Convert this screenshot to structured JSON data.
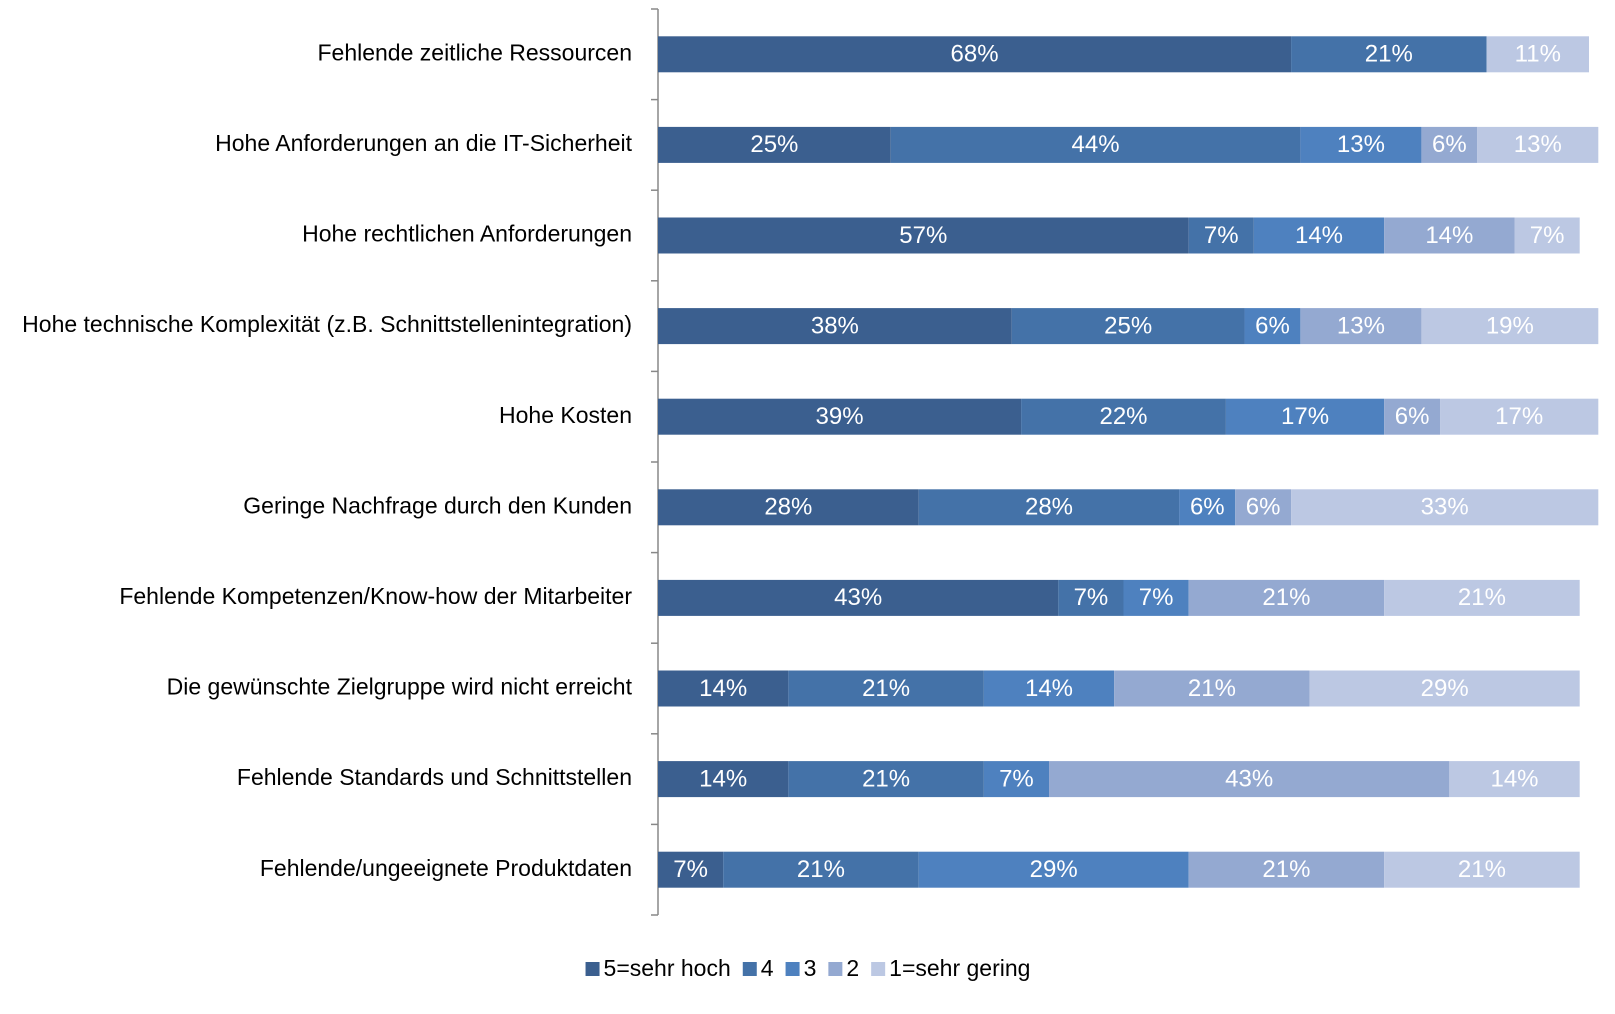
{
  "chart_data": {
    "type": "stacked-bar-horizontal",
    "categories": [
      "Fehlende zeitliche Ressourcen",
      "Hohe Anforderungen an die IT-Sicherheit",
      "Hohe rechtlichen Anforderungen",
      "Hohe technische Komplexität (z.B. Schnittstellenintegration)",
      "Hohe Kosten",
      "Geringe Nachfrage durch den Kunden",
      "Fehlende Kompetenzen/Know-how der Mitarbeiter",
      "Die gewünschte Zielgruppe wird nicht erreicht",
      "Fehlende Standards und Schnittstellen",
      "Fehlende/ungeeignete Produktdaten"
    ],
    "xlim": [
      0,
      100
    ],
    "legend": "bottom",
    "series": [
      {
        "name": "5=sehr hoch",
        "color": "#3b5f8f",
        "values": [
          68,
          25,
          57,
          38,
          39,
          28,
          43,
          14,
          14,
          7
        ],
        "value_labels": [
          "68%",
          "25%",
          "57%",
          "38%",
          "39%",
          "28%",
          "43%",
          "14%",
          "14%",
          "7%"
        ]
      },
      {
        "name": "4",
        "color": "#4472a8",
        "values": [
          21,
          44,
          7,
          25,
          22,
          28,
          7,
          21,
          21,
          21
        ],
        "value_labels": [
          "21%",
          "44%",
          "7%",
          "25%",
          "22%",
          "28%",
          "7%",
          "21%",
          "21%",
          "21%"
        ]
      },
      {
        "name": "3",
        "color": "#4e81bf",
        "values": [
          null,
          13,
          14,
          6,
          17,
          6,
          7,
          14,
          7,
          29
        ],
        "value_labels": [
          null,
          "13%",
          "14%",
          "6%",
          "17%",
          "6%",
          "7%",
          "14%",
          "7%",
          "29%"
        ]
      },
      {
        "name": "2",
        "color": "#94a9d1",
        "values": [
          null,
          6,
          14,
          13,
          6,
          6,
          21,
          21,
          43,
          21
        ],
        "value_labels": [
          null,
          "6%",
          "14%",
          "13%",
          "6%",
          "6%",
          "21%",
          "21%",
          "43%",
          "21%"
        ]
      },
      {
        "name": "1=sehr gering",
        "color": "#bcc8e3",
        "values": [
          11,
          13,
          7,
          19,
          17,
          33,
          21,
          29,
          14,
          21
        ],
        "value_labels": [
          "11%",
          "13%",
          "7%",
          "19%",
          "17%",
          "33%",
          "21%",
          "29%",
          "14%",
          "21%"
        ]
      }
    ]
  }
}
